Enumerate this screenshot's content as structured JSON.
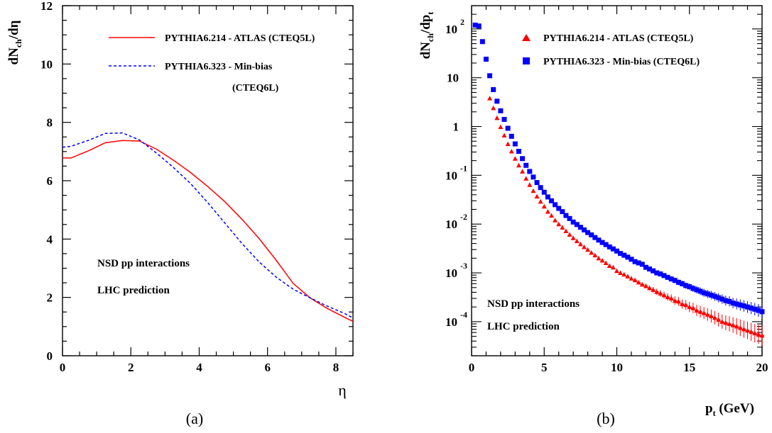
{
  "colors": {
    "atlas": "#ff0000",
    "minbias": "#0000ff",
    "axis": "#000000"
  },
  "panel_a": {
    "caption": "(a)",
    "ylabel": "dN",
    "ylabel_sub": "ch",
    "ylabel_tail": "/dη",
    "xlabel": "η",
    "legend": {
      "atlas": "PYTHIA6.214 - ATLAS (CTEQ5L)",
      "minbias_line1": "PYTHIA6.323 - Min-bias",
      "minbias_line2": "(CTEQ6L)"
    },
    "annotation_1": "NSD pp interactions",
    "annotation_2": "LHC prediction",
    "xticks": [
      "0",
      "2",
      "4",
      "6",
      "8"
    ],
    "yticks": [
      "0",
      "2",
      "4",
      "6",
      "8",
      "10",
      "12"
    ]
  },
  "panel_b": {
    "caption": "(b)",
    "ylabel": "dN",
    "ylabel_sub1": "ch",
    "ylabel_mid": "/dp",
    "ylabel_sub2": "t",
    "xlabel": "p",
    "xlabel_sub": "t",
    "xlabel_tail": " (GeV)",
    "legend": {
      "atlas": "PYTHIA6.214 - ATLAS (CTEQ5L)",
      "minbias": "PYTHIA6.323 - Min-bias (CTEQ6L)"
    },
    "annotation_1": "NSD pp interactions",
    "annotation_2": "LHC prediction",
    "xticks": [
      "0",
      "5",
      "10",
      "15",
      "20"
    ],
    "ytick_base": "10",
    "ytick_exps": [
      "2",
      "",
      "",
      "-1",
      "-2",
      "-3",
      "-4"
    ]
  },
  "chart_data": [
    {
      "type": "line",
      "xlabel": "η",
      "ylabel": "dNch/dη",
      "xlim": [
        0,
        8.5
      ],
      "ylim": [
        0,
        12
      ],
      "series": [
        {
          "name": "PYTHIA6.214 - ATLAS (CTEQ5L)",
          "x": [
            0,
            0.25,
            0.75,
            1.25,
            1.75,
            2.25,
            2.75,
            3.25,
            3.75,
            4.25,
            4.75,
            5.25,
            5.75,
            6.25,
            6.75,
            7.25,
            7.75,
            8.25,
            8.5
          ],
          "y": [
            6.78,
            6.78,
            7.02,
            7.3,
            7.38,
            7.36,
            7.08,
            6.7,
            6.28,
            5.8,
            5.28,
            4.68,
            4.02,
            3.28,
            2.48,
            1.98,
            1.62,
            1.32,
            1.18
          ]
        },
        {
          "name": "PYTHIA6.323 - Min-bias (CTEQ6L)",
          "x": [
            0,
            0.25,
            0.75,
            1.25,
            1.75,
            2.25,
            2.75,
            3.25,
            3.75,
            4.25,
            4.75,
            5.25,
            5.75,
            6.25,
            6.75,
            7.25,
            7.75,
            8.25,
            8.5
          ],
          "y": [
            7.15,
            7.18,
            7.38,
            7.62,
            7.64,
            7.4,
            6.95,
            6.45,
            5.9,
            5.25,
            4.55,
            3.85,
            3.22,
            2.7,
            2.28,
            1.98,
            1.7,
            1.45,
            1.3
          ]
        }
      ]
    },
    {
      "type": "scatter",
      "xlabel": "pt (GeV)",
      "ylabel": "dNch/dpt",
      "yscale": "log",
      "xlim": [
        0,
        20
      ],
      "ylim": [
        2e-05,
        300
      ],
      "series": [
        {
          "name": "PYTHIA6.214 - ATLAS (CTEQ5L)",
          "x": [
            1.25,
            1.5,
            1.75,
            2.0,
            2.25,
            2.5,
            2.75,
            3.0,
            3.25,
            3.5,
            3.75,
            4.0,
            4.25,
            4.5,
            4.75,
            5.0,
            5.25,
            5.5,
            5.75,
            6.0,
            6.25,
            6.5,
            6.75,
            7.0,
            7.25,
            7.5,
            7.75,
            8.0,
            8.25,
            8.5,
            8.75,
            9.0,
            9.25,
            9.5,
            9.75,
            10.0,
            10.25,
            10.5,
            10.75,
            11.0,
            11.25,
            11.5,
            11.75,
            12.0,
            12.25,
            12.5,
            12.75,
            13.0,
            13.25,
            13.5,
            13.75,
            14.0,
            14.25,
            14.5,
            14.75,
            15.0,
            15.25,
            15.5,
            15.75,
            16.0,
            16.25,
            16.5,
            16.75,
            17.0,
            17.25,
            17.5,
            17.75,
            18.0,
            18.25,
            18.5,
            18.75,
            19.0,
            19.25,
            19.5,
            19.75,
            20.0
          ],
          "y": [
            3.8,
            2.4,
            1.5,
            0.98,
            0.66,
            0.44,
            0.31,
            0.22,
            0.16,
            0.12,
            0.086,
            0.064,
            0.048,
            0.037,
            0.029,
            0.023,
            0.018,
            0.015,
            0.012,
            0.01,
            0.0085,
            0.0072,
            0.0061,
            0.0052,
            0.0045,
            0.0039,
            0.0034,
            0.003,
            0.0026,
            0.0023,
            0.002,
            0.0018,
            0.0016,
            0.0014,
            0.0013,
            0.0011,
            0.001,
            0.00093,
            0.00085,
            0.00077,
            0.00071,
            0.00064,
            0.00058,
            0.00054,
            0.00049,
            0.00045,
            0.00041,
            0.00038,
            0.00035,
            0.00032,
            0.0003,
            0.00027,
            0.00026,
            0.00023,
            0.00022,
            0.0002,
            0.00019,
            0.00017,
            0.00016,
            0.00015,
            0.00014,
            0.00013,
            0.00012,
            0.00011,
            0.0001,
            9.5e-05,
            9e-05,
            8.5e-05,
            8e-05,
            7.5e-05,
            7e-05,
            6.6e-05,
            6.2e-05,
            5.8e-05,
            5.5e-05,
            5.2e-05
          ]
        },
        {
          "name": "PYTHIA6.323 - Min-bias (CTEQ6L)",
          "x": [
            0.25,
            0.5,
            0.75,
            1.0,
            1.25,
            1.5,
            1.75,
            2.0,
            2.25,
            2.5,
            2.75,
            3.0,
            3.25,
            3.5,
            3.75,
            4.0,
            4.25,
            4.5,
            4.75,
            5.0,
            5.25,
            5.5,
            5.75,
            6.0,
            6.25,
            6.5,
            6.75,
            7.0,
            7.25,
            7.5,
            7.75,
            8.0,
            8.25,
            8.5,
            8.75,
            9.0,
            9.25,
            9.5,
            9.75,
            10.0,
            10.25,
            10.5,
            10.75,
            11.0,
            11.25,
            11.5,
            11.75,
            12.0,
            12.25,
            12.5,
            12.75,
            13.0,
            13.25,
            13.5,
            13.75,
            14.0,
            14.25,
            14.5,
            14.75,
            15.0,
            15.25,
            15.5,
            15.75,
            16.0,
            16.25,
            16.5,
            16.75,
            17.0,
            17.25,
            17.5,
            17.75,
            18.0,
            18.25,
            18.5,
            18.75,
            19.0,
            19.25,
            19.5,
            19.75,
            20.0
          ],
          "y": [
            120,
            115,
            55,
            24,
            11,
            5.7,
            3.3,
            2.1,
            1.4,
            0.92,
            0.63,
            0.44,
            0.31,
            0.22,
            0.16,
            0.12,
            0.092,
            0.071,
            0.056,
            0.045,
            0.036,
            0.03,
            0.025,
            0.021,
            0.018,
            0.015,
            0.013,
            0.011,
            0.0098,
            0.0086,
            0.0076,
            0.0067,
            0.006,
            0.0053,
            0.0047,
            0.0042,
            0.0038,
            0.0034,
            0.0031,
            0.0028,
            0.0025,
            0.0023,
            0.0021,
            0.0019,
            0.0017,
            0.0016,
            0.0015,
            0.0013,
            0.0012,
            0.0011,
            0.001,
            0.00095,
            0.00088,
            0.00081,
            0.00075,
            0.0007,
            0.00064,
            0.0006,
            0.00055,
            0.00052,
            0.00048,
            0.00045,
            0.00042,
            0.00039,
            0.00037,
            0.00035,
            0.00033,
            0.00031,
            0.00029,
            0.00027,
            0.00026,
            0.00024,
            0.00023,
            0.00022,
            0.00021,
            0.0002,
            0.00019,
            0.00018,
            0.00017,
            0.00016
          ]
        }
      ]
    }
  ]
}
